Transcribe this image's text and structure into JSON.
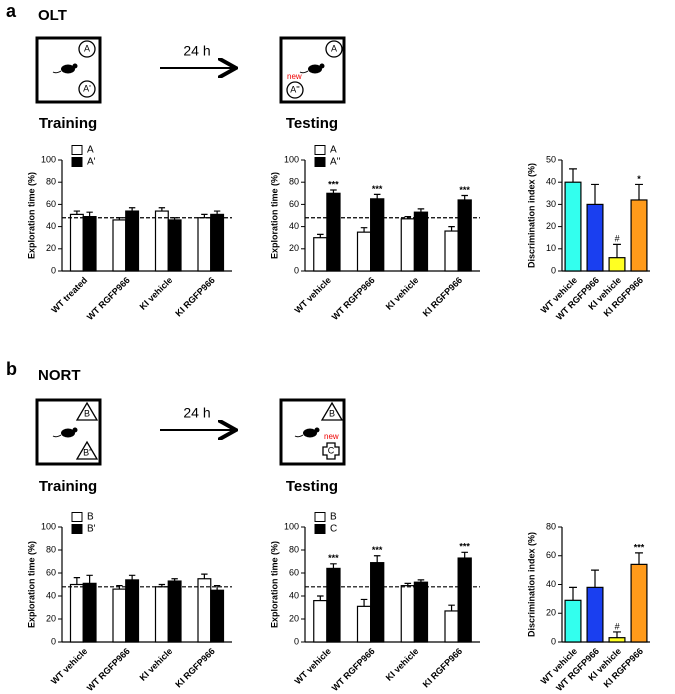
{
  "panels": [
    {
      "label": "a",
      "title": "OLT",
      "delay": "24 h",
      "training": {
        "caption": "Training",
        "objects": [
          "A",
          "A'"
        ]
      },
      "testing": {
        "caption": "Testing",
        "objects": [
          "A",
          "A''"
        ],
        "note": "new"
      }
    },
    {
      "label": "b",
      "title": "NORT",
      "delay": "24 h",
      "training": {
        "caption": "Training",
        "objects": [
          "B",
          "B'"
        ]
      },
      "testing": {
        "caption": "Testing",
        "objects": [
          "B",
          "C"
        ],
        "note": "new"
      }
    }
  ],
  "chart_data": [
    {
      "type": "bar",
      "ylabel": "Exploration time (%)",
      "ylim": [
        0,
        100
      ],
      "yticks": [
        0,
        20,
        40,
        60,
        80,
        100
      ],
      "hline": 48,
      "legend": "upper left",
      "categories": [
        "WT treated",
        "WT RGFP966",
        "KI vehicle",
        "KI RGFP966"
      ],
      "series": [
        {
          "name": "A",
          "color": "#ffffff",
          "values": [
            51,
            46,
            54,
            48
          ],
          "errors": [
            3,
            2,
            3,
            3
          ]
        },
        {
          "name": "A'",
          "color": "#000000",
          "values": [
            49,
            54,
            46,
            51
          ],
          "errors": [
            4,
            3,
            2,
            3
          ]
        }
      ]
    },
    {
      "type": "bar",
      "ylabel": "Exploration time (%)",
      "ylim": [
        0,
        100
      ],
      "yticks": [
        0,
        20,
        40,
        60,
        80,
        100
      ],
      "hline": 48,
      "legend": "upper left",
      "categories": [
        "WT vehicle",
        "WT RGFP966",
        "KI vehicle",
        "KI RGFP966"
      ],
      "series": [
        {
          "name": "A",
          "color": "#ffffff",
          "values": [
            30,
            35,
            47,
            36
          ],
          "errors": [
            3,
            4,
            2,
            4
          ]
        },
        {
          "name": "A''",
          "color": "#000000",
          "values": [
            70,
            65,
            53,
            64
          ],
          "errors": [
            3,
            4,
            3,
            4
          ],
          "annotations": [
            "***",
            "***",
            null,
            "***"
          ]
        }
      ]
    },
    {
      "type": "bar",
      "ylabel": "Discrimination index (%)",
      "ylim": [
        0,
        50
      ],
      "yticks": [
        0,
        10,
        20,
        30,
        40,
        50
      ],
      "categories": [
        "WT vehicle",
        "WT RGFP966",
        "KI vehicle",
        "KI RGFP966"
      ],
      "series": [
        {
          "colors": [
            "#33ffee",
            "#1a3ff0",
            "#ffff22",
            "#ff9a1a"
          ],
          "values": [
            40,
            30,
            6,
            32
          ],
          "errors": [
            6,
            9,
            6,
            7
          ],
          "annotations": [
            null,
            null,
            "#",
            "*"
          ]
        }
      ]
    },
    {
      "type": "bar",
      "ylabel": "Exploration time (%)",
      "ylim": [
        0,
        100
      ],
      "yticks": [
        0,
        20,
        40,
        60,
        80,
        100
      ],
      "hline": 48,
      "legend": "upper left",
      "categories": [
        "WT vehicle",
        "WT RGFP966",
        "KI vehicle",
        "KI RGFP966"
      ],
      "series": [
        {
          "name": "B",
          "color": "#ffffff",
          "values": [
            50,
            46,
            48,
            55
          ],
          "errors": [
            6,
            3,
            2,
            4
          ]
        },
        {
          "name": "B'",
          "color": "#000000",
          "values": [
            51,
            54,
            53,
            45
          ],
          "errors": [
            7,
            4,
            2,
            4
          ]
        }
      ]
    },
    {
      "type": "bar",
      "ylabel": "Exploration time (%)",
      "ylim": [
        0,
        100
      ],
      "yticks": [
        0,
        20,
        40,
        60,
        80,
        100
      ],
      "hline": 48,
      "legend": "upper left",
      "categories": [
        "WT vehicle",
        "WT RGFP966",
        "KI vehicle",
        "KI RGFP966"
      ],
      "series": [
        {
          "name": "B",
          "color": "#ffffff",
          "values": [
            36,
            31,
            49,
            27
          ],
          "errors": [
            4,
            6,
            2,
            5
          ]
        },
        {
          "name": "C",
          "color": "#000000",
          "values": [
            64,
            69,
            52,
            73
          ],
          "errors": [
            4,
            6,
            2,
            5
          ],
          "annotations": [
            "***",
            "***",
            null,
            "***"
          ]
        }
      ]
    },
    {
      "type": "bar",
      "ylabel": "Discrimination index (%)",
      "ylim": [
        0,
        80
      ],
      "yticks": [
        0,
        20,
        40,
        60,
        80
      ],
      "categories": [
        "WT vehicle",
        "WT RGFP966",
        "KI vehicle",
        "KI RGFP966"
      ],
      "series": [
        {
          "colors": [
            "#33ffee",
            "#1a3ff0",
            "#ffff22",
            "#ff9a1a"
          ],
          "values": [
            29,
            38,
            3,
            54
          ],
          "errors": [
            9,
            12,
            4,
            8
          ],
          "annotations": [
            null,
            null,
            "#",
            "***"
          ]
        }
      ]
    }
  ]
}
